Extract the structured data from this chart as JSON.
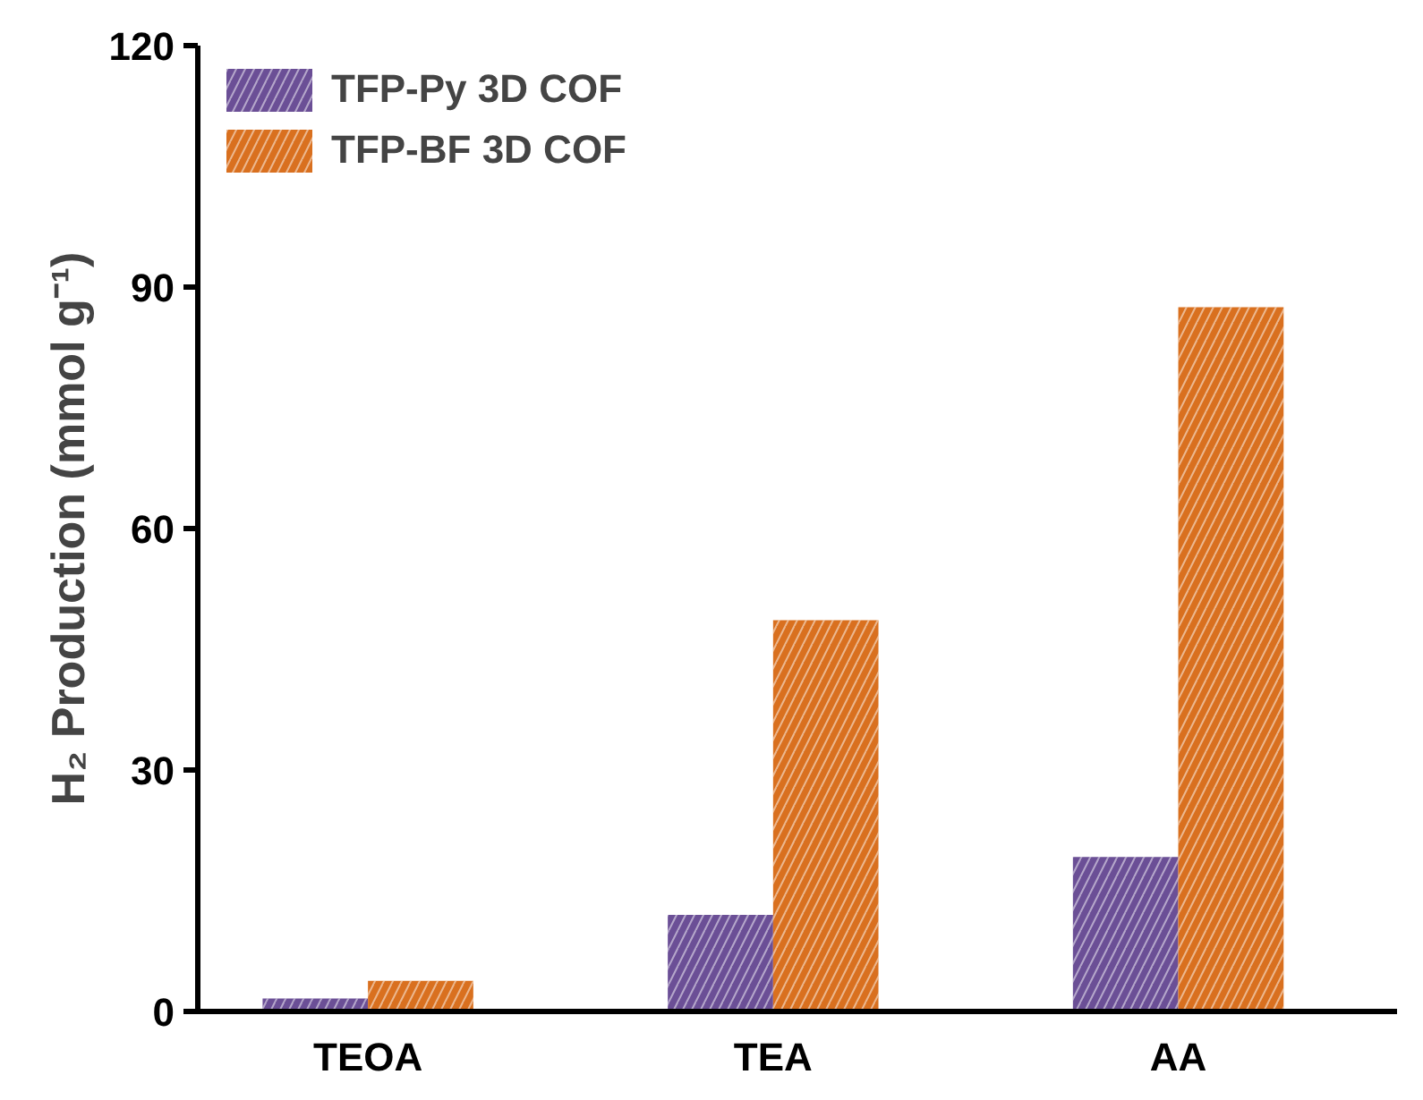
{
  "chart_data": {
    "type": "bar",
    "ylabel": "H₂ Production (mmol g⁻¹)",
    "categories": [
      "TEOA",
      "TEA",
      "AA"
    ],
    "series": [
      {
        "name": "TFP-Py 3D COF",
        "color": "#6b4f96",
        "values": [
          1.6,
          12,
          19.2
        ]
      },
      {
        "name": "TFP-BF 3D COF",
        "color": "#d9701f",
        "values": [
          3.8,
          48.6,
          87.5
        ]
      }
    ],
    "ylim": [
      0,
      120
    ],
    "yticks": [
      0,
      30,
      60,
      90,
      120
    ],
    "grid": false,
    "legend": "top left"
  }
}
